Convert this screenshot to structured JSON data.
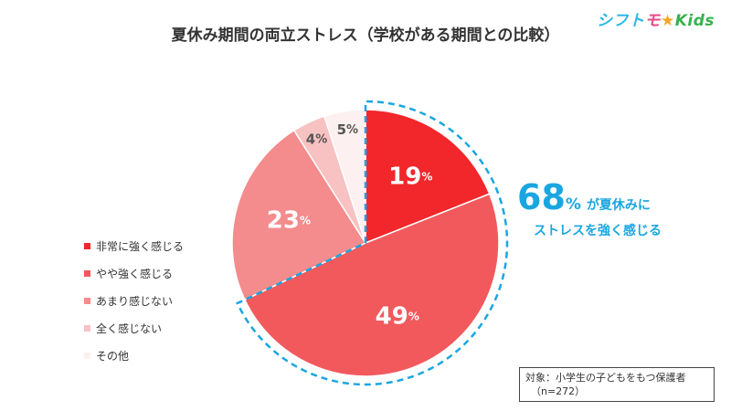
{
  "title": "夏休み期間の両立ストレス（学校がある期間との比較）",
  "logo": {
    "part1": "シフト",
    "part2": "モ",
    "star": "★",
    "part3": "Kids"
  },
  "chart_data": {
    "type": "pie",
    "title": "夏休み期間の両立ストレス（学校がある期間との比較）",
    "start_angle_deg": 0,
    "direction": "clockwise",
    "unit": "%",
    "slices": [
      {
        "label": "非常に強く感じる",
        "value": 19,
        "color": "#f2272b",
        "label_color": "#ffffff"
      },
      {
        "label": "やや強く感じる",
        "value": 49,
        "color": "#f2595c",
        "label_color": "#ffffff"
      },
      {
        "label": "あまり感じない",
        "value": 23,
        "color": "#f48b8c",
        "label_color": "#ffffff"
      },
      {
        "label": "全く感じない",
        "value": 4,
        "color": "#f8c2c2",
        "label_color": "#555555"
      },
      {
        "label": "その他",
        "value": 5,
        "color": "#fcf0f0",
        "label_color": "#555555"
      }
    ],
    "legend_position": "left"
  },
  "callout": {
    "value": "68",
    "unit": "%",
    "text1": "が夏休みに",
    "text2": "ストレスを強く感じる",
    "color": "#1aa6e0"
  },
  "note": {
    "line1": "対象：小学生の子どもをもつ保護者",
    "line2": "（n=272）"
  }
}
